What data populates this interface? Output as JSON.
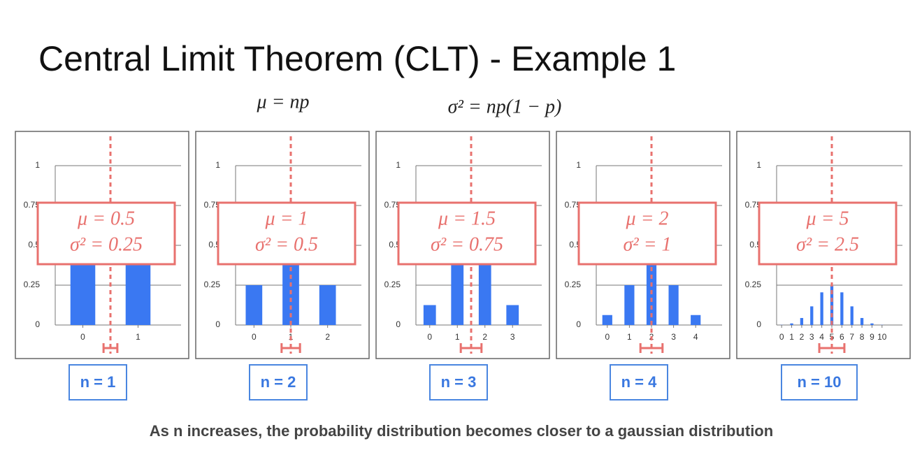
{
  "title": "Central Limit Theorem (CLT) - Example 1",
  "formulas": [
    "μ = np",
    "σ² = np(1 − p)"
  ],
  "chart_data": [
    {
      "type": "bar",
      "label": "n = 1",
      "categories": [
        "0",
        "1"
      ],
      "values": [
        0.5,
        0.5
      ],
      "ylim": [
        0,
        1
      ],
      "yticks": [
        0,
        0.25,
        0.5,
        0.75,
        1
      ],
      "color": "#3a78f2",
      "mean": 0.5,
      "variance": 0.25,
      "mean_label": "μ = 0.5",
      "variance_label": "σ² = 0.25"
    },
    {
      "type": "bar",
      "label": "n = 2",
      "categories": [
        "0",
        "1",
        "2"
      ],
      "values": [
        0.25,
        0.5,
        0.25
      ],
      "ylim": [
        0,
        1
      ],
      "yticks": [
        0,
        0.25,
        0.5,
        0.75,
        1
      ],
      "color": "#3a78f2",
      "mean": 1,
      "variance": 0.5,
      "mean_label": "μ = 1",
      "variance_label": "σ² = 0.5"
    },
    {
      "type": "bar",
      "label": "n = 3",
      "categories": [
        "0",
        "1",
        "2",
        "3"
      ],
      "values": [
        0.125,
        0.375,
        0.375,
        0.125
      ],
      "ylim": [
        0,
        1
      ],
      "yticks": [
        0,
        0.25,
        0.5,
        0.75,
        1
      ],
      "color": "#3a78f2",
      "mean": 1.5,
      "variance": 0.75,
      "mean_label": "μ = 1.5",
      "variance_label": "σ² = 0.75"
    },
    {
      "type": "bar",
      "label": "n = 4",
      "categories": [
        "0",
        "1",
        "2",
        "3",
        "4"
      ],
      "values": [
        0.0625,
        0.25,
        0.375,
        0.25,
        0.0625
      ],
      "ylim": [
        0,
        1
      ],
      "yticks": [
        0,
        0.25,
        0.5,
        0.75,
        1
      ],
      "color": "#3a78f2",
      "mean": 2,
      "variance": 1,
      "mean_label": "μ = 2",
      "variance_label": "σ² = 1"
    },
    {
      "type": "bar",
      "label": "n = 10",
      "categories": [
        "0",
        "1",
        "2",
        "3",
        "4",
        "5",
        "6",
        "7",
        "8",
        "9",
        "10"
      ],
      "values": [
        0.001,
        0.01,
        0.044,
        0.117,
        0.205,
        0.246,
        0.205,
        0.117,
        0.044,
        0.01,
        0.001
      ],
      "ylim": [
        0,
        1
      ],
      "yticks": [
        0,
        0.25,
        0.5,
        0.75,
        1
      ],
      "color": "#3a78f2",
      "mean": 5,
      "variance": 2.5,
      "mean_label": "μ = 5",
      "variance_label": "σ² = 2.5"
    }
  ],
  "caption": "As n increases, the probability distribution becomes closer to a gaussian distribution"
}
